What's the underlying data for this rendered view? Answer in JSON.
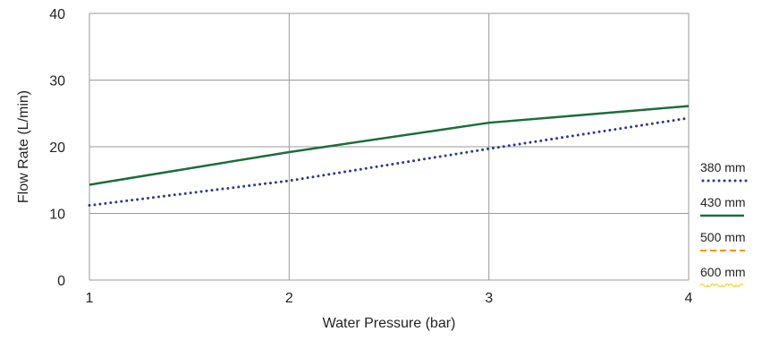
{
  "chart_data": {
    "type": "line",
    "xlabel": "Water Pressure (bar)",
    "ylabel": "Flow Rate (L/min)",
    "xlim": [
      1,
      4
    ],
    "ylim": [
      0,
      40
    ],
    "x_ticks": [
      "1",
      "2",
      "3",
      "4"
    ],
    "y_ticks": [
      "0",
      "10",
      "20",
      "30",
      "40"
    ],
    "grid": true,
    "legend_position": "right",
    "series": [
      {
        "name": "380 mm",
        "color": "#2b3990",
        "style": "dotted",
        "x": [
          1,
          2,
          3,
          4
        ],
        "y": [
          11.2,
          14.9,
          19.7,
          24.3
        ]
      },
      {
        "name": "430 mm",
        "color": "#1b6e3a",
        "style": "solid",
        "x": [
          1,
          2,
          3,
          4
        ],
        "y": [
          14.3,
          19.2,
          23.6,
          26.1
        ]
      },
      {
        "name": "500 mm",
        "color": "#f7941d",
        "style": "dashed",
        "x": [],
        "y": []
      },
      {
        "name": "600 mm",
        "color": "#f2d024",
        "style": "wavy",
        "x": [],
        "y": []
      }
    ]
  }
}
